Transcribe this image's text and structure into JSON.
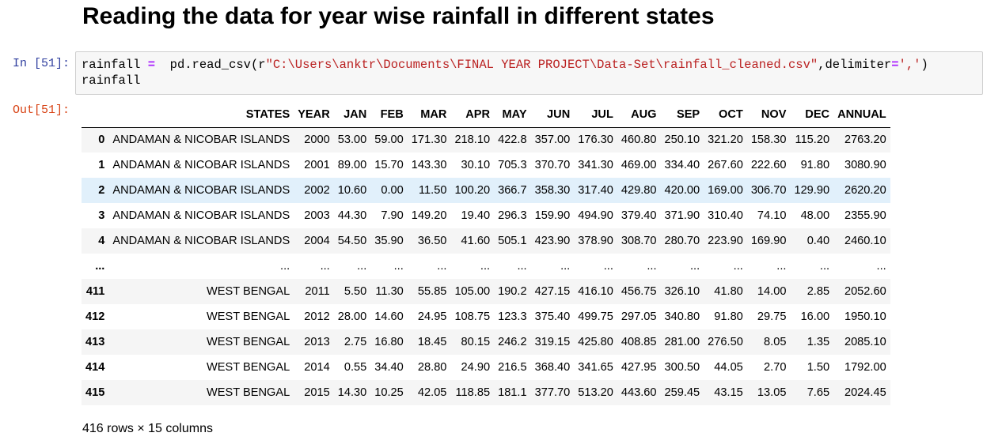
{
  "heading": "Reading the data for year wise rainfall in different states",
  "in_prompt": "In [51]:",
  "out_prompt": "Out[51]:",
  "code": {
    "l1_var": "rainfall",
    "l1_op": "=",
    "l1_call": "pd.read_csv(r",
    "l1_path": "\"C:\\Users\\anktr\\Documents\\FINAL YEAR PROJECT\\Data-Set\\rainfall_cleaned.csv\"",
    "l1_kw": ",delimiter",
    "l1_op2": "=",
    "l1_delim": "','",
    "l1_close": ")",
    "l2": "rainfall"
  },
  "table": {
    "columns": [
      "",
      "STATES",
      "YEAR",
      "JAN",
      "FEB",
      "MAR",
      "APR",
      "MAY",
      "JUN",
      "JUL",
      "AUG",
      "SEP",
      "OCT",
      "NOV",
      "DEC",
      "ANNUAL"
    ],
    "rows": [
      [
        "0",
        "ANDAMAN & NICOBAR ISLANDS",
        "2000",
        "53.00",
        "59.00",
        "171.30",
        "218.10",
        "422.8",
        "357.00",
        "176.30",
        "460.80",
        "250.10",
        "321.20",
        "158.30",
        "115.20",
        "2763.20"
      ],
      [
        "1",
        "ANDAMAN & NICOBAR ISLANDS",
        "2001",
        "89.00",
        "15.70",
        "143.30",
        "30.10",
        "705.3",
        "370.70",
        "341.30",
        "469.00",
        "334.40",
        "267.60",
        "222.60",
        "91.80",
        "3080.90"
      ],
      [
        "2",
        "ANDAMAN & NICOBAR ISLANDS",
        "2002",
        "10.60",
        "0.00",
        "11.50",
        "100.20",
        "366.7",
        "358.30",
        "317.40",
        "429.80",
        "420.00",
        "169.00",
        "306.70",
        "129.90",
        "2620.20"
      ],
      [
        "3",
        "ANDAMAN & NICOBAR ISLANDS",
        "2003",
        "44.30",
        "7.90",
        "149.20",
        "19.40",
        "296.3",
        "159.90",
        "494.90",
        "379.40",
        "371.90",
        "310.40",
        "74.10",
        "48.00",
        "2355.90"
      ],
      [
        "4",
        "ANDAMAN & NICOBAR ISLANDS",
        "2004",
        "54.50",
        "35.90",
        "36.50",
        "41.60",
        "505.1",
        "423.90",
        "378.90",
        "308.70",
        "280.70",
        "223.90",
        "169.90",
        "0.40",
        "2460.10"
      ],
      [
        "...",
        "...",
        "...",
        "...",
        "...",
        "...",
        "...",
        "...",
        "...",
        "...",
        "...",
        "...",
        "...",
        "...",
        "...",
        "..."
      ],
      [
        "411",
        "WEST BENGAL",
        "2011",
        "5.50",
        "11.30",
        "55.85",
        "105.00",
        "190.2",
        "427.15",
        "416.10",
        "456.75",
        "326.10",
        "41.80",
        "14.00",
        "2.85",
        "2052.60"
      ],
      [
        "412",
        "WEST BENGAL",
        "2012",
        "28.00",
        "14.60",
        "24.95",
        "108.75",
        "123.3",
        "375.40",
        "499.75",
        "297.05",
        "340.80",
        "91.80",
        "29.75",
        "16.00",
        "1950.10"
      ],
      [
        "413",
        "WEST BENGAL",
        "2013",
        "2.75",
        "16.80",
        "18.45",
        "80.15",
        "246.2",
        "319.15",
        "425.80",
        "408.85",
        "281.00",
        "276.50",
        "8.05",
        "1.35",
        "2085.10"
      ],
      [
        "414",
        "WEST BENGAL",
        "2014",
        "0.55",
        "34.40",
        "28.80",
        "24.90",
        "216.5",
        "368.40",
        "341.65",
        "427.95",
        "300.50",
        "44.05",
        "2.70",
        "1.50",
        "1792.00"
      ],
      [
        "415",
        "WEST BENGAL",
        "2015",
        "14.30",
        "10.25",
        "42.05",
        "118.85",
        "181.1",
        "377.70",
        "513.20",
        "443.60",
        "259.45",
        "43.15",
        "13.05",
        "7.65",
        "2024.45"
      ]
    ],
    "highlight_row": 2
  },
  "footer": "416 rows × 15 columns"
}
